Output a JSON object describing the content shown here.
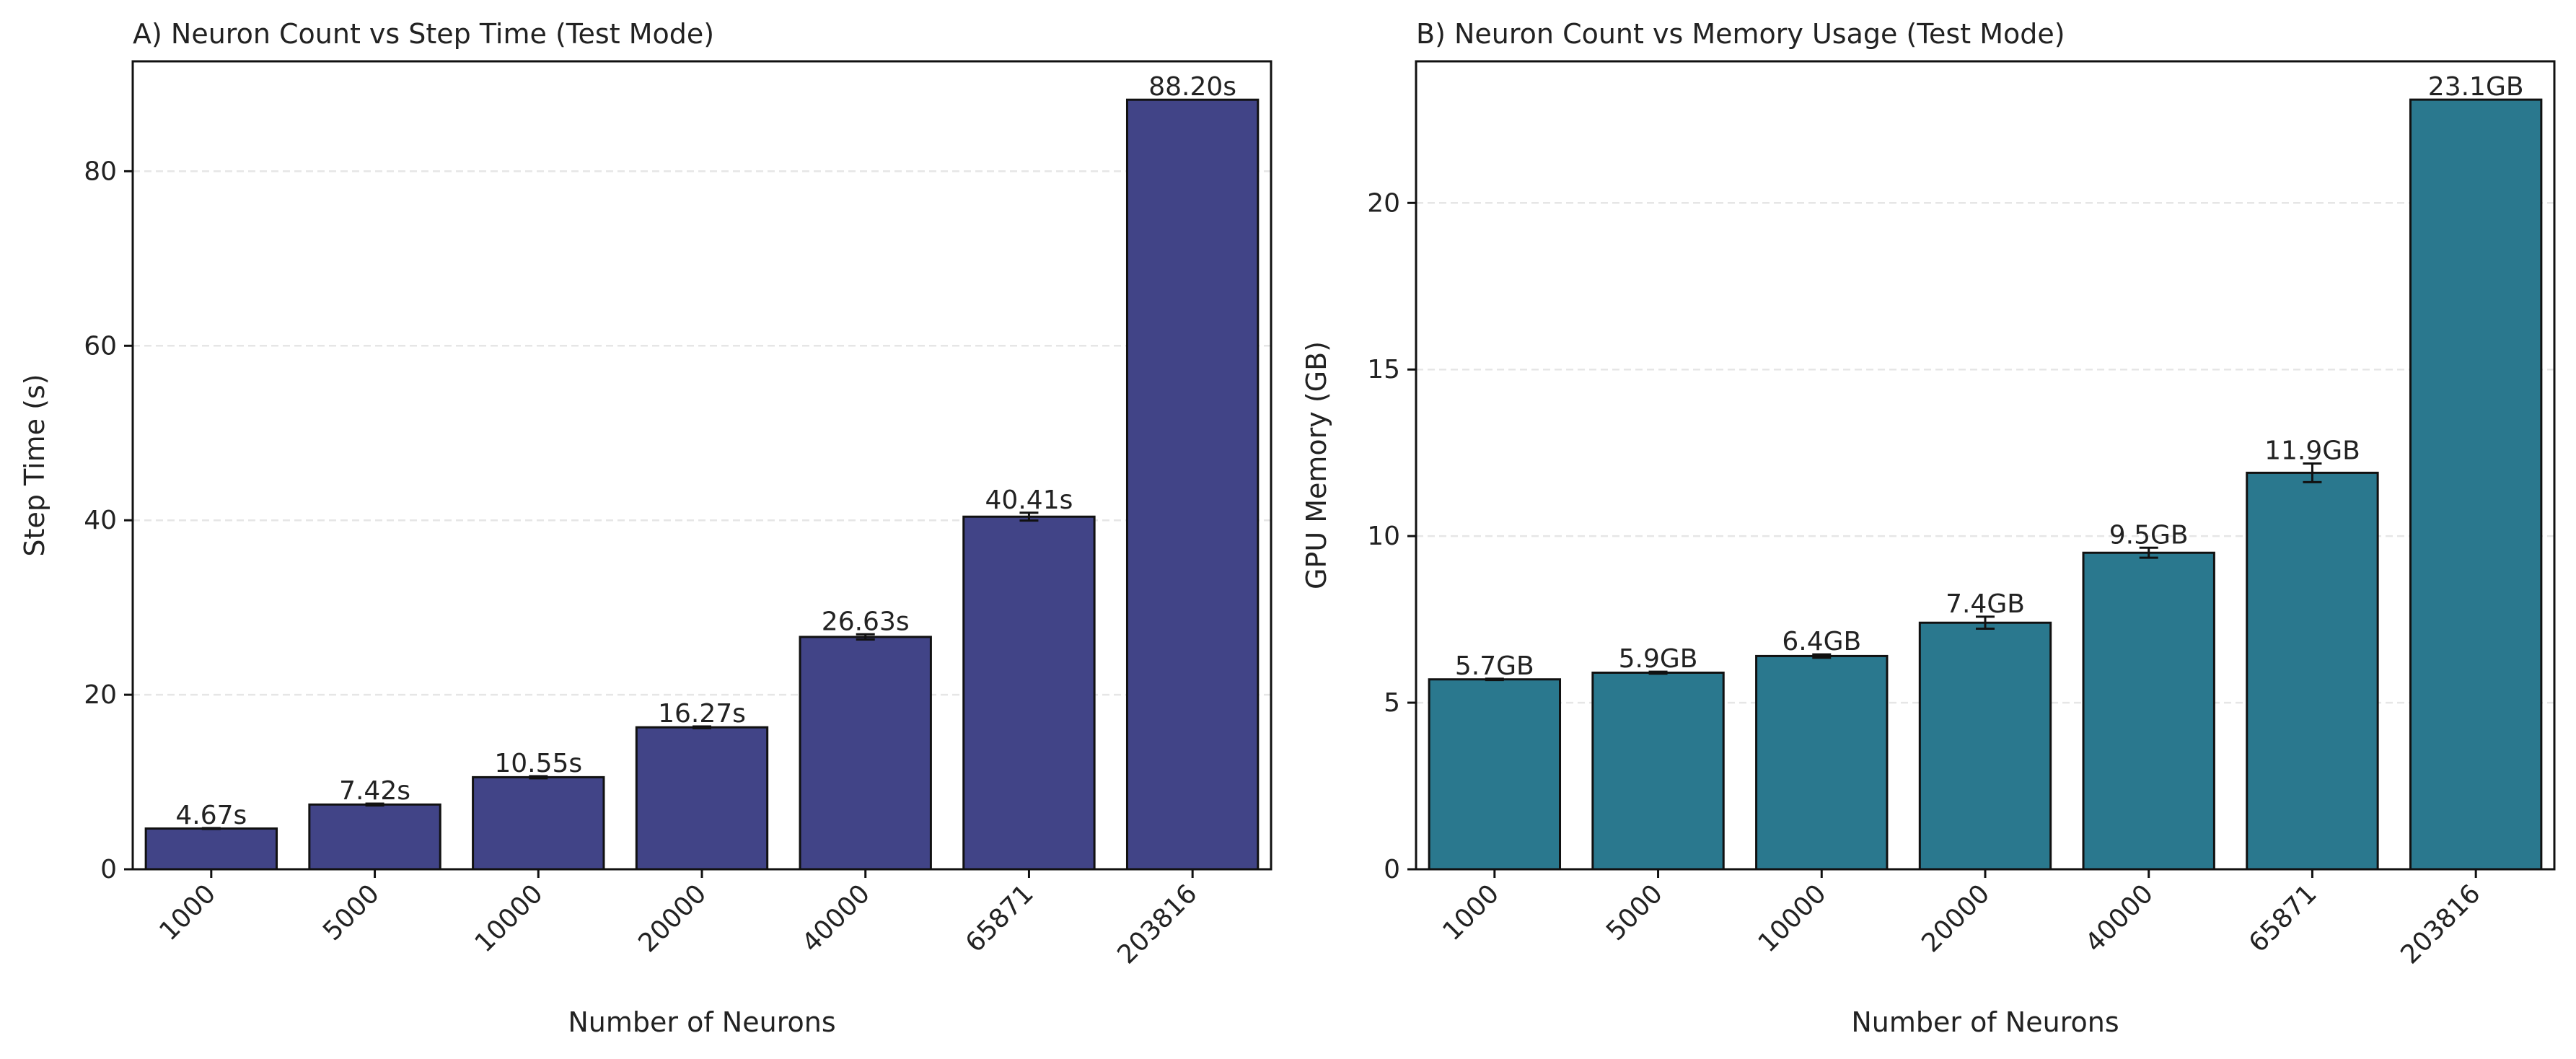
{
  "chart_data": [
    {
      "type": "bar",
      "title": "A) Neuron Count vs Step Time (Test Mode)",
      "xlabel": "Number of Neurons",
      "ylabel": "Step Time (s)",
      "categories": [
        "1000",
        "5000",
        "10000",
        "20000",
        "40000",
        "65871",
        "203816"
      ],
      "values": [
        4.67,
        7.42,
        10.55,
        16.27,
        26.63,
        40.41,
        88.2
      ],
      "errors": [
        0.05,
        0.1,
        0.12,
        0.1,
        0.3,
        0.45,
        0.0
      ],
      "data_labels": [
        "4.67s",
        "7.42s",
        "10.55s",
        "16.27s",
        "26.63s",
        "40.41s",
        "88.20s"
      ],
      "ylim": [
        0,
        92.6
      ],
      "yticks": [
        0,
        20,
        40,
        60,
        80
      ],
      "ytick_labels": [
        "0",
        "20",
        "40",
        "60",
        "80"
      ],
      "bar_color": "#414487",
      "grid": "horizontal dashed",
      "legend": "none"
    },
    {
      "type": "bar",
      "title": "B) Neuron Count vs Memory Usage (Test Mode)",
      "xlabel": "Number of Neurons",
      "ylabel": "GPU Memory (GB)",
      "categories": [
        "1000",
        "5000",
        "10000",
        "20000",
        "40000",
        "65871",
        "203816"
      ],
      "values": [
        5.7,
        5.9,
        6.4,
        7.4,
        9.5,
        11.9,
        23.1
      ],
      "errors": [
        0.02,
        0.03,
        0.05,
        0.18,
        0.15,
        0.28,
        0.0
      ],
      "data_labels": [
        "5.7GB",
        "5.9GB",
        "6.4GB",
        "7.4GB",
        "9.5GB",
        "11.9GB",
        "23.1GB"
      ],
      "ylim": [
        0,
        24.25
      ],
      "yticks": [
        0,
        5,
        10,
        15,
        20
      ],
      "ytick_labels": [
        "0",
        "5",
        "10",
        "15",
        "20"
      ],
      "bar_color": "#2a788e",
      "grid": "horizontal dashed",
      "legend": "none"
    }
  ]
}
